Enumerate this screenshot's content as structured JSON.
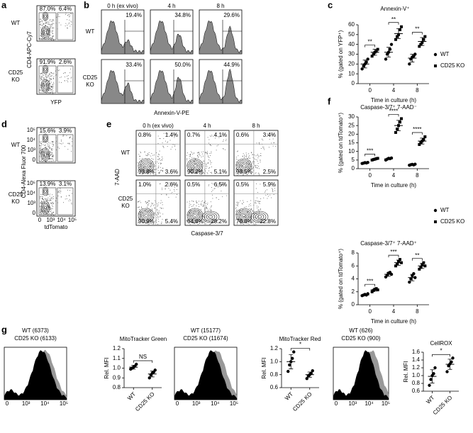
{
  "panel_labels": [
    "a",
    "b",
    "c",
    "d",
    "e",
    "f",
    "g"
  ],
  "flow_ticks": [
    "0",
    "10³",
    "10⁴",
    "10⁵"
  ],
  "a": {
    "rows": [
      "WT",
      "CD25 KO"
    ],
    "y_label": "CD4-APC-Cy7",
    "x_label": "YFP",
    "gates": [
      [
        "87.0%",
        "6.4%"
      ],
      [
        "91.9%",
        "2.6%"
      ]
    ]
  },
  "b": {
    "rows": [
      "WT",
      "CD25 KO"
    ],
    "columns": [
      "0 h (ex vivo)",
      "4 h",
      "8 h"
    ],
    "x_label": "Annexin-V-PE",
    "gates": [
      [
        "19.4%",
        "34.8%",
        "29.6%"
      ],
      [
        "33.4%",
        "50.0%",
        "44.9%"
      ]
    ]
  },
  "d": {
    "rows": [
      "WT",
      "CD25 KO"
    ],
    "y_label": "CD4-Alexa Fluor 700",
    "x_label": "tdTomato",
    "gates": [
      [
        "15.6%",
        "3.9%"
      ],
      [
        "13.9%",
        "3.1%"
      ]
    ]
  },
  "e": {
    "rows": [
      "WT",
      "CD25 KO"
    ],
    "columns": [
      "0 h (ex vivo)",
      "4 h",
      "8 h"
    ],
    "y_label": "7-AAD",
    "x_label": "Caspase-3/7",
    "quadrants": [
      [
        [
          "0.8%",
          "1.4%",
          "93.8%",
          "3.6%"
        ],
        [
          "0.7%",
          "4.1%",
          "90.2%",
          "5.1%"
        ],
        [
          "0.6%",
          "3.4%",
          "93.5%",
          "2.5%"
        ]
      ],
      [
        [
          "1.0%",
          "2.6%",
          "90.9%",
          "5.4%"
        ],
        [
          "0.5%",
          "6.5%",
          "64.8%",
          "28.2%"
        ],
        [
          "0.5%",
          "5.9%",
          "70.8%",
          "22.8%"
        ]
      ]
    ]
  },
  "g": {
    "histograms": [
      {
        "wt": "WT (6373)",
        "ko": "CD25 KO (6133)"
      },
      {
        "wt": "WT (15177)",
        "ko": "CD25 KO (11674)"
      },
      {
        "wt": "WT (626)",
        "ko": "CD25 KO (900)"
      }
    ]
  },
  "chart_data": [
    {
      "type": "strip",
      "title": "Annexin-V⁺",
      "y_label": "% (gated on YFP⁺)",
      "x_label": "Time in culture (h)",
      "categories": [
        "0",
        "4",
        "8"
      ],
      "ylim": [
        0,
        60
      ],
      "yticks": [
        0,
        10,
        20,
        30,
        40,
        50,
        60
      ],
      "legend": "right",
      "significance": [
        "**",
        "**",
        "**"
      ],
      "series": [
        {
          "name": "WT",
          "color": "#000000",
          "marker": "circle",
          "values": [
            [
              15,
              18,
              20,
              22,
              25
            ],
            [
              25,
              30,
              32,
              35,
              40
            ],
            [
              20,
              25,
              27,
              28,
              30
            ]
          ],
          "mean": [
            20,
            32,
            26
          ],
          "sd": [
            4,
            5,
            4
          ]
        },
        {
          "name": "CD25 KO",
          "color": "#000000",
          "marker": "square",
          "values": [
            [
              28,
              30,
              32,
              33,
              35
            ],
            [
              45,
              48,
              50,
              55,
              58
            ],
            [
              38,
              40,
              42,
              45,
              48
            ]
          ],
          "mean": [
            32,
            51,
            43
          ],
          "sd": [
            3,
            5,
            4
          ]
        }
      ]
    },
    {
      "type": "strip",
      "title": "Caspase-3/7⁺ 7-AAD⁻",
      "y_label": "% (gated on tdTomato⁺)",
      "x_label": "Time in culture (h)",
      "categories": [
        "0",
        "4",
        "8"
      ],
      "ylim": [
        0,
        30
      ],
      "yticks": [
        0,
        5,
        10,
        15,
        20,
        25,
        30
      ],
      "legend": "right",
      "significance": [
        "***",
        "****",
        "****"
      ],
      "series": [
        {
          "name": "WT",
          "color": "#000000",
          "marker": "circle",
          "values": [
            [
              3,
              3.2,
              3.5,
              3.3,
              3.6
            ],
            [
              5,
              5.5,
              6,
              5.8,
              6.2
            ],
            [
              2,
              2.3,
              2.5,
              2.2,
              2.6
            ]
          ],
          "mean": [
            3.3,
            5.7,
            2.3
          ],
          "sd": [
            0.3,
            0.4,
            0.2
          ]
        },
        {
          "name": "CD25 KO",
          "color": "#000000",
          "marker": "square",
          "values": [
            [
              5,
              5.3,
              5.5,
              5.8,
              6
            ],
            [
              21,
              23,
              25,
              27,
              29
            ],
            [
              14,
              15,
              16,
              17,
              18.5
            ]
          ],
          "mean": [
            5.5,
            25,
            16
          ],
          "sd": [
            0.4,
            3,
            1.7
          ]
        }
      ]
    },
    {
      "type": "strip",
      "title": "Caspase-3/7⁺ 7-AAD⁺",
      "y_label": "% (gated on tdTomato⁺)",
      "x_label": "Time in culture (h)",
      "categories": [
        "0",
        "4",
        "8"
      ],
      "ylim": [
        0,
        8
      ],
      "yticks": [
        0,
        2,
        4,
        6,
        8
      ],
      "significance": [
        "***",
        "***",
        "**"
      ],
      "series": [
        {
          "name": "WT",
          "color": "#000000",
          "marker": "circle",
          "values": [
            [
              1.4,
              1.5,
              1.6,
              1.5,
              1.7
            ],
            [
              4.3,
              4.6,
              4.9,
              5,
              4.7
            ],
            [
              3.5,
              4,
              4.5,
              4.8,
              4.2
            ]
          ],
          "mean": [
            1.5,
            4.7,
            4.2
          ],
          "sd": [
            0.1,
            0.3,
            0.5
          ]
        },
        {
          "name": "CD25 KO",
          "color": "#000000",
          "marker": "square",
          "values": [
            [
              2,
              2.2,
              2.4,
              2.5,
              2.3
            ],
            [
              6,
              6.3,
              6.7,
              7,
              6.5
            ],
            [
              5.5,
              5.8,
              6.2,
              6.5,
              6
            ]
          ],
          "mean": [
            2.3,
            6.5,
            6
          ],
          "sd": [
            0.2,
            0.4,
            0.4
          ]
        }
      ]
    },
    {
      "type": "strip",
      "title": "MitoTracker Green",
      "y_label": "Rel. MFI",
      "categories": [
        "WT",
        "CD25 KO"
      ],
      "ylim": [
        0.8,
        1.2
      ],
      "yticks": [
        0.8,
        0.9,
        {
          "value": 1,
          "label": "1.0"
        },
        1.1,
        1.2
      ],
      "significance": [
        "NS"
      ],
      "series": [
        {
          "color": "#000000",
          "marker": "circle",
          "values": [
            [
              0.99,
              1.0,
              1.01,
              1.02,
              1.04
            ],
            [
              0.9,
              0.93,
              0.95,
              0.96,
              0.98
            ]
          ],
          "mean": [
            1.01,
            0.94
          ],
          "sd": [
            0.02,
            0.03
          ]
        }
      ]
    },
    {
      "type": "strip",
      "title": "MitoTracker Red",
      "y_label": "Rel. MFI",
      "categories": [
        "WT",
        "CD25 KO"
      ],
      "ylim": [
        0.6,
        1.2
      ],
      "yticks": [
        0.6,
        0.8,
        {
          "value": 1,
          "label": "1.0"
        },
        1.2
      ],
      "significance": [
        "*"
      ],
      "series": [
        {
          "color": "#000000",
          "marker": "circle",
          "values": [
            [
              0.85,
              0.95,
              1.0,
              1.05,
              1.15
            ],
            [
              0.74,
              0.78,
              0.8,
              0.82,
              0.86
            ]
          ],
          "mean": [
            1.0,
            0.8
          ],
          "sd": [
            0.11,
            0.04
          ]
        }
      ]
    },
    {
      "type": "strip",
      "title": "CellROX",
      "y_label": "Rel. MFI",
      "categories": [
        "WT",
        "CD25 KO"
      ],
      "ylim": [
        0.6,
        1.6
      ],
      "yticks": [
        0.6,
        0.8,
        {
          "value": 1,
          "label": "1.0"
        },
        1.2,
        1.4,
        1.6
      ],
      "significance": [
        "*"
      ],
      "series": [
        {
          "color": "#000000",
          "marker": "circle",
          "values": [
            [
              0.75,
              0.9,
              1.0,
              1.05,
              1.2
            ],
            [
              1.1,
              1.25,
              1.3,
              1.35,
              1.45
            ]
          ],
          "mean": [
            0.98,
            1.29
          ],
          "sd": [
            0.17,
            0.13
          ]
        }
      ]
    }
  ]
}
